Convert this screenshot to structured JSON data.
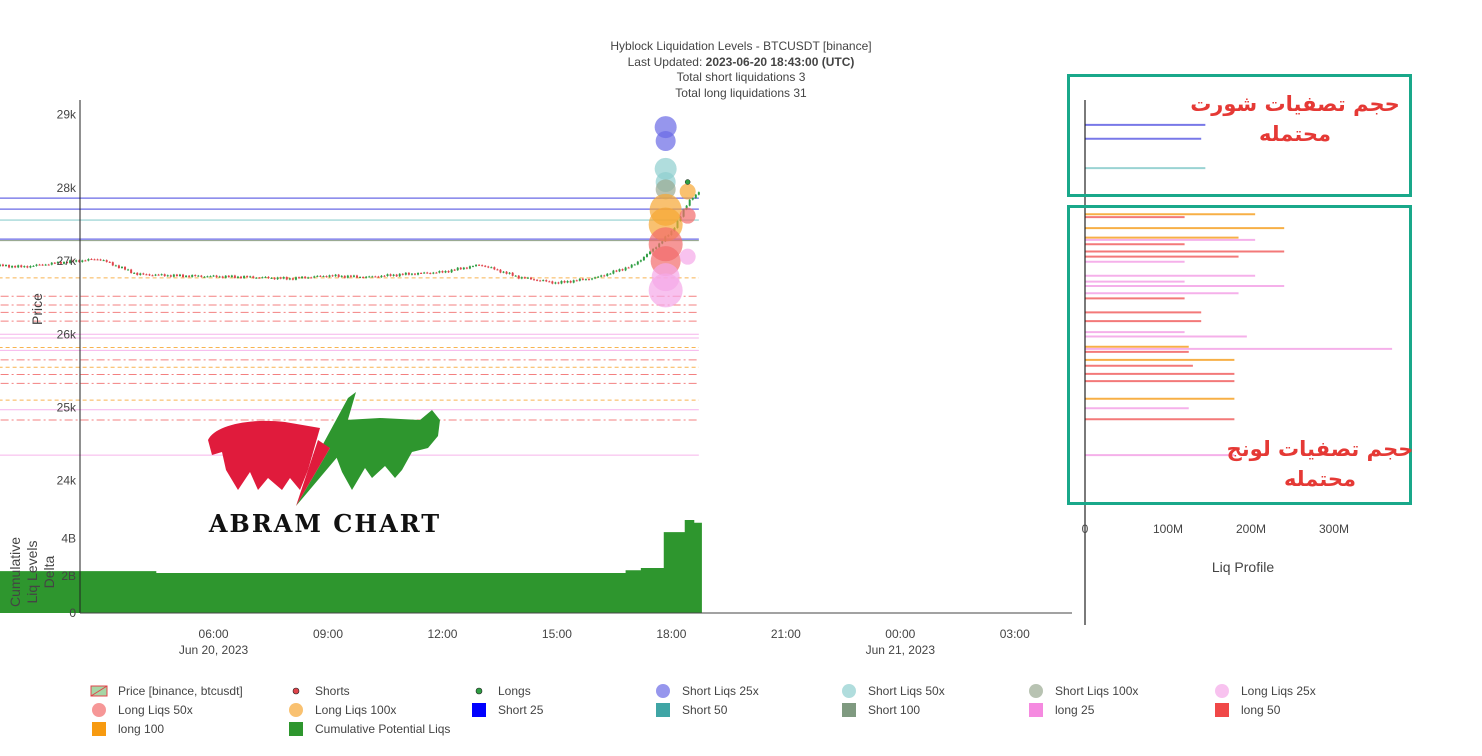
{
  "title": {
    "line1": "Hyblock Liquidation Levels - BTCUSDT [binance]",
    "line2_prefix": "Last Updated: ",
    "line2_value": "2023-06-20 18:43:00 (UTC)",
    "line3": "Total short liquidations 3",
    "line4": "Total long liquidations 31"
  },
  "annotations": {
    "short_volume": "حجم تصفيات شورت محتمله",
    "long_volume": "حجم تصفيات لونج محتمله"
  },
  "logo": {
    "text": "ABRAM CHART"
  },
  "colors": {
    "price_up": "#2e9e43",
    "price_down": "#e0444b",
    "short25": "#6a6ae6",
    "short50": "#8fcfcf",
    "short100": "#9aaa92",
    "long25": "#f5a8e8",
    "long50": "#f26b6b",
    "long100": "#f7a733",
    "cumulative": "#2e962e",
    "annotation_box": "#19a88a"
  },
  "chart_data": [
    {
      "type": "line",
      "name": "price",
      "ylabel": "Price",
      "ylim": [
        23600,
        29200
      ],
      "yticks": [
        "29k",
        "28k",
        "27k",
        "26k",
        "25k",
        "24k"
      ],
      "ytick_values": [
        29000,
        28000,
        27000,
        26000,
        25000,
        24000
      ],
      "x_hours": [
        0,
        1,
        2,
        3,
        4,
        5,
        6,
        7,
        8,
        9,
        10,
        11,
        12,
        13,
        14,
        15,
        16,
        17,
        17.5,
        18,
        18.5,
        18.72
      ],
      "price": [
        26950,
        26920,
        26980,
        27030,
        26820,
        26800,
        26790,
        26780,
        26760,
        26800,
        26780,
        26820,
        26850,
        26950,
        26780,
        26700,
        26770,
        26940,
        27150,
        27400,
        27850,
        27940
      ],
      "short_levels": [
        {
          "price": 27860,
          "tier": "25x"
        },
        {
          "price": 27710,
          "tier": "25x"
        },
        {
          "price": 27560,
          "tier": "50x"
        },
        {
          "price": 27300,
          "tier": "25x"
        },
        {
          "price": 27280,
          "tier": "100x"
        }
      ],
      "long_levels": [
        {
          "price": 26770,
          "tier": "100x"
        },
        {
          "price": 26520,
          "tier": "50x"
        },
        {
          "price": 26400,
          "tier": "50x"
        },
        {
          "price": 26300,
          "tier": "50x"
        },
        {
          "price": 26180,
          "tier": "50x"
        },
        {
          "price": 26000,
          "tier": "25x"
        },
        {
          "price": 25950,
          "tier": "25x"
        },
        {
          "price": 25820,
          "tier": "100x"
        },
        {
          "price": 25780,
          "tier": "25x"
        },
        {
          "price": 25650,
          "tier": "50x"
        },
        {
          "price": 25550,
          "tier": "100x"
        },
        {
          "price": 25450,
          "tier": "50x"
        },
        {
          "price": 25330,
          "tier": "50x"
        },
        {
          "price": 25100,
          "tier": "100x"
        },
        {
          "price": 24970,
          "tier": "25x"
        },
        {
          "price": 24830,
          "tier": "50x"
        },
        {
          "price": 24350,
          "tier": "25x"
        }
      ],
      "bubbles": [
        {
          "kind": "short25",
          "price": 28830,
          "size": 11
        },
        {
          "kind": "short25",
          "price": 28640,
          "size": 10
        },
        {
          "kind": "short50",
          "price": 28260,
          "size": 11
        },
        {
          "kind": "short50",
          "price": 28080,
          "size": 10
        },
        {
          "kind": "short100",
          "price": 27980,
          "size": 10
        },
        {
          "kind": "long100",
          "price": 27700,
          "size": 16
        },
        {
          "kind": "long100",
          "price": 27500,
          "size": 17
        },
        {
          "kind": "long50",
          "price": 27230,
          "size": 17
        },
        {
          "kind": "long50",
          "price": 27000,
          "size": 15
        },
        {
          "kind": "long25",
          "price": 26780,
          "size": 14
        },
        {
          "kind": "long25",
          "price": 26600,
          "size": 17
        },
        {
          "kind": "long50",
          "price": 27620,
          "size": 8
        },
        {
          "kind": "long25",
          "price": 27060,
          "size": 8
        },
        {
          "kind": "long100",
          "price": 27950,
          "size": 8
        }
      ]
    },
    {
      "type": "area",
      "name": "Cumulative Potential Liqs",
      "ylabel": "Cumulative Liq Levels Delta",
      "ylim": [
        0,
        5000000000
      ],
      "yticks": [
        "4B",
        "2B",
        "0"
      ],
      "ytick_values": [
        4000000000,
        2000000000,
        0
      ],
      "x_hours": [
        0,
        4.5,
        4.5,
        16.8,
        16.8,
        17.2,
        17.2,
        17.8,
        17.8,
        18.35,
        18.35,
        18.6,
        18.6,
        18.8
      ],
      "values": [
        2250000000,
        2250000000,
        2150000000,
        2150000000,
        2300000000,
        2300000000,
        2420000000,
        2420000000,
        4350000000,
        4350000000,
        5000000000,
        5000000000,
        4850000000,
        4850000000
      ]
    },
    {
      "type": "bar",
      "name": "Liq Profile",
      "xlabel": "Liq Profile",
      "xticks": [
        "0",
        "100M",
        "200M",
        "300M"
      ],
      "xtick_values": [
        0,
        100000000,
        200000000,
        300000000
      ],
      "bars": [
        {
          "price": 28860,
          "value": 145000000,
          "kind": "short25"
        },
        {
          "price": 28670,
          "value": 140000000,
          "kind": "short25"
        },
        {
          "price": 28270,
          "value": 145000000,
          "kind": "short50"
        },
        {
          "price": 27640,
          "value": 205000000,
          "kind": "long100"
        },
        {
          "price": 27600,
          "value": 120000000,
          "kind": "long50"
        },
        {
          "price": 27450,
          "value": 240000000,
          "kind": "long100"
        },
        {
          "price": 27320,
          "value": 185000000,
          "kind": "long100"
        },
        {
          "price": 27290,
          "value": 205000000,
          "kind": "long25"
        },
        {
          "price": 27230,
          "value": 120000000,
          "kind": "long50"
        },
        {
          "price": 27130,
          "value": 240000000,
          "kind": "long50"
        },
        {
          "price": 27060,
          "value": 185000000,
          "kind": "long50"
        },
        {
          "price": 26990,
          "value": 120000000,
          "kind": "long25"
        },
        {
          "price": 26800,
          "value": 205000000,
          "kind": "long25"
        },
        {
          "price": 26720,
          "value": 120000000,
          "kind": "long25"
        },
        {
          "price": 26660,
          "value": 240000000,
          "kind": "long25"
        },
        {
          "price": 26560,
          "value": 185000000,
          "kind": "long25"
        },
        {
          "price": 26490,
          "value": 120000000,
          "kind": "long50"
        },
        {
          "price": 26300,
          "value": 140000000,
          "kind": "long50"
        },
        {
          "price": 26180,
          "value": 140000000,
          "kind": "long50"
        },
        {
          "price": 26030,
          "value": 120000000,
          "kind": "long25"
        },
        {
          "price": 25970,
          "value": 195000000,
          "kind": "long25"
        },
        {
          "price": 25830,
          "value": 125000000,
          "kind": "long100"
        },
        {
          "price": 25800,
          "value": 370000000,
          "kind": "long25"
        },
        {
          "price": 25760,
          "value": 125000000,
          "kind": "long50"
        },
        {
          "price": 25650,
          "value": 180000000,
          "kind": "long100"
        },
        {
          "price": 25570,
          "value": 130000000,
          "kind": "long50"
        },
        {
          "price": 25460,
          "value": 180000000,
          "kind": "long50"
        },
        {
          "price": 25360,
          "value": 180000000,
          "kind": "long50"
        },
        {
          "price": 25120,
          "value": 180000000,
          "kind": "long100"
        },
        {
          "price": 24990,
          "value": 125000000,
          "kind": "long25"
        },
        {
          "price": 24840,
          "value": 180000000,
          "kind": "long50"
        },
        {
          "price": 24350,
          "value": 180000000,
          "kind": "long25"
        }
      ]
    }
  ],
  "x_axis": {
    "ticks": [
      {
        "hour": 6,
        "label": "06:00",
        "sub": "Jun 20, 2023"
      },
      {
        "hour": 9,
        "label": "09:00",
        "sub": ""
      },
      {
        "hour": 12,
        "label": "12:00",
        "sub": ""
      },
      {
        "hour": 15,
        "label": "15:00",
        "sub": ""
      },
      {
        "hour": 18,
        "label": "18:00",
        "sub": ""
      },
      {
        "hour": 21,
        "label": "21:00",
        "sub": ""
      },
      {
        "hour": 24,
        "label": "00:00",
        "sub": "Jun 21, 2023"
      },
      {
        "hour": 27,
        "label": "03:00",
        "sub": ""
      }
    ]
  },
  "legend": [
    {
      "label": "Price [binance, btcusdt]",
      "symbol": "candle"
    },
    {
      "label": "Shorts",
      "symbol": "dot-red"
    },
    {
      "label": "Longs",
      "symbol": "dot-green"
    },
    {
      "label": "Short Liqs 25x",
      "symbol": "circle",
      "color": "#6a6ae6"
    },
    {
      "label": "Short Liqs 50x",
      "symbol": "circle",
      "color": "#8fcfcf"
    },
    {
      "label": "Short Liqs 100x",
      "symbol": "circle",
      "color": "#9aaa92"
    },
    {
      "label": "Long Liqs 25x",
      "symbol": "circle",
      "color": "#f5a8e8"
    },
    {
      "label": "Long Liqs 50x",
      "symbol": "circle",
      "color": "#f26b6b"
    },
    {
      "label": "Long Liqs 100x",
      "symbol": "circle",
      "color": "#f7a733"
    },
    {
      "label": "Short 25",
      "symbol": "square",
      "color": "#0000ff"
    },
    {
      "label": "Short 50",
      "symbol": "square",
      "color": "#3fa5a5"
    },
    {
      "label": "Short 100",
      "symbol": "square",
      "color": "#7f9a80"
    },
    {
      "label": "long 25",
      "symbol": "square",
      "color": "#f58ae0"
    },
    {
      "label": "long 50",
      "symbol": "square",
      "color": "#f04848"
    },
    {
      "label": "long 100",
      "symbol": "square",
      "color": "#f79a10"
    },
    {
      "label": "Cumulative Potential Liqs",
      "symbol": "square",
      "color": "#2e962e"
    }
  ]
}
